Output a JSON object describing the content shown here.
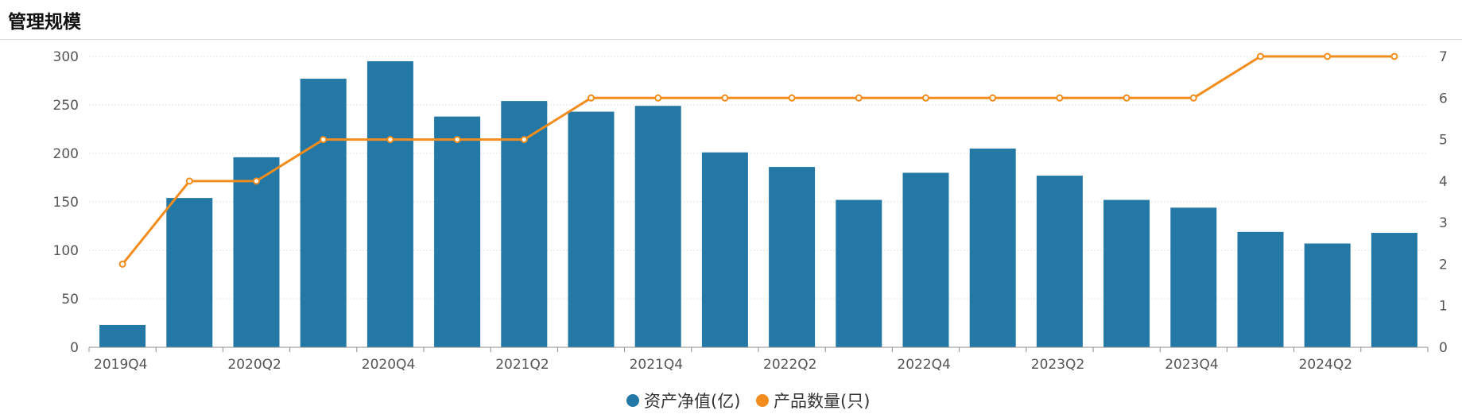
{
  "header": {
    "title": "管理规模"
  },
  "chart_data": {
    "type": "bar",
    "categories": [
      "2019Q4",
      "2020Q1",
      "2020Q2",
      "2020Q3",
      "2020Q4",
      "2021Q1",
      "2021Q2",
      "2021Q3",
      "2021Q4",
      "2022Q1",
      "2022Q2",
      "2022Q3",
      "2022Q4",
      "2023Q1",
      "2023Q2",
      "2023Q3",
      "2023Q4",
      "2024Q1",
      "2024Q2",
      "2024Q3"
    ],
    "x_tick_labels": [
      "2019Q4",
      "2020Q2",
      "2020Q4",
      "2021Q2",
      "2021Q4",
      "2022Q2",
      "2022Q4",
      "2023Q2",
      "2023Q4",
      "2024Q2"
    ],
    "series": [
      {
        "name": "资产净值(亿)",
        "type": "bar",
        "axis": "left",
        "color": "#2478a6",
        "values": [
          23,
          154,
          196,
          277,
          295,
          238,
          254,
          243,
          249,
          201,
          186,
          152,
          180,
          205,
          177,
          152,
          144,
          119,
          107,
          118
        ]
      },
      {
        "name": "产品数量(只)",
        "type": "line",
        "axis": "right",
        "color": "#f28c1c",
        "values": [
          2,
          4,
          4,
          5,
          5,
          5,
          5,
          6,
          6,
          6,
          6,
          6,
          6,
          6,
          6,
          6,
          6,
          7,
          7,
          7
        ]
      }
    ],
    "left_axis": {
      "ylim": [
        0,
        300
      ],
      "ticks": [
        "0",
        "50",
        "100",
        "150",
        "200",
        "250",
        "300"
      ]
    },
    "right_axis": {
      "ylim": [
        0,
        7
      ],
      "ticks": [
        "0",
        "1",
        "2",
        "3",
        "4",
        "5",
        "6",
        "7"
      ]
    },
    "grid": true,
    "legend_position": "bottom-center"
  }
}
